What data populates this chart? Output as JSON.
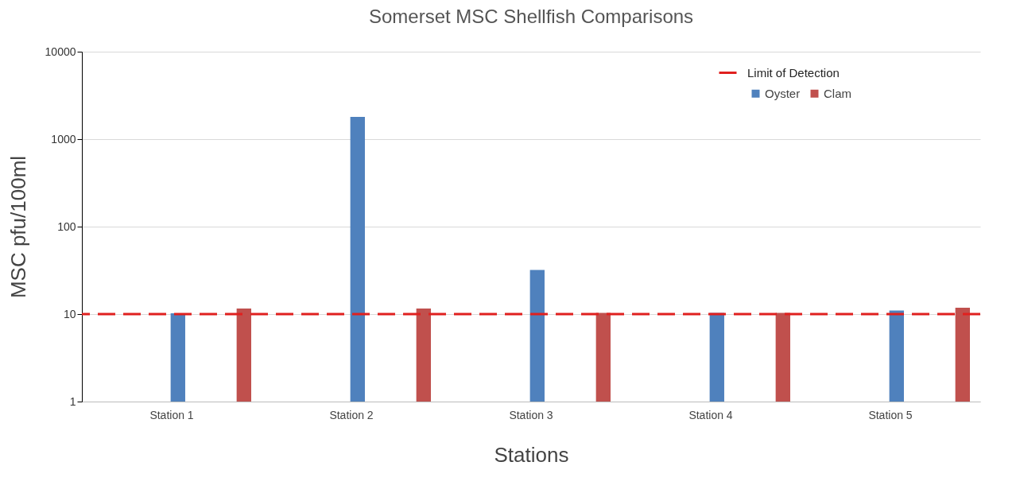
{
  "chart_data": {
    "type": "bar",
    "title": "Somerset MSC Shellfish Comparisons",
    "xlabel": "Stations",
    "ylabel": "MSC pfu/100ml",
    "categories": [
      "Station 1",
      "Station 2",
      "Station 3",
      "Station 4",
      "Station 5"
    ],
    "series": [
      {
        "name": "Oyster",
        "color": "#4f81bd",
        "values": [
          10.2,
          1800,
          32,
          10.3,
          11
        ]
      },
      {
        "name": "Clam",
        "color": "#c0504d",
        "values": [
          11.6,
          11.6,
          10.3,
          10.3,
          11.8
        ]
      }
    ],
    "log": true,
    "ylim": [
      1,
      10000
    ],
    "yticks": [
      1,
      10,
      100,
      1000,
      10000
    ],
    "grid": "y",
    "legend": "top right",
    "ref_lines": [
      {
        "axis": "y",
        "value": 10,
        "label": "Limit of Detection",
        "color": "#e0201f",
        "line_style": "dashed"
      }
    ]
  }
}
